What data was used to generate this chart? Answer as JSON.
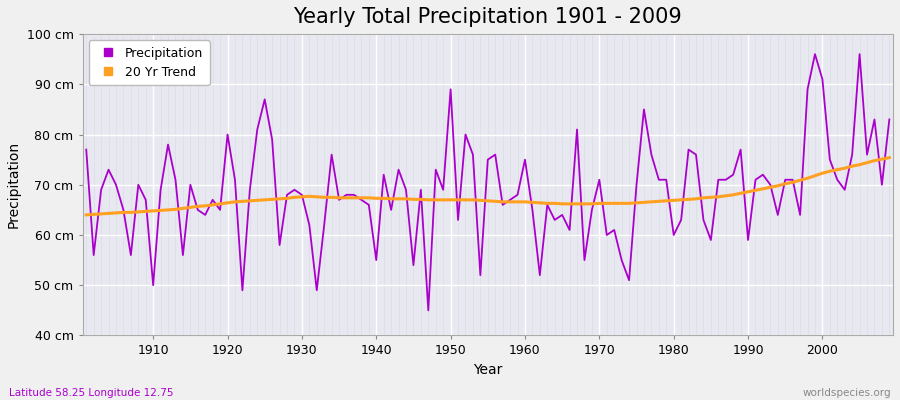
{
  "title": "Yearly Total Precipitation 1901 - 2009",
  "xlabel": "Year",
  "ylabel": "Precipitation",
  "subtitle_left": "Latitude 58.25 Longitude 12.75",
  "subtitle_right": "worldspecies.org",
  "ylim": [
    40,
    100
  ],
  "ytick_labels": [
    "40 cm",
    "50 cm",
    "60 cm",
    "70 cm",
    "80 cm",
    "90 cm",
    "100 cm"
  ],
  "ytick_values": [
    40,
    50,
    60,
    70,
    80,
    90,
    100
  ],
  "years": [
    1901,
    1902,
    1903,
    1904,
    1905,
    1906,
    1907,
    1908,
    1909,
    1910,
    1911,
    1912,
    1913,
    1914,
    1915,
    1916,
    1917,
    1918,
    1919,
    1920,
    1921,
    1922,
    1923,
    1924,
    1925,
    1926,
    1927,
    1928,
    1929,
    1930,
    1931,
    1932,
    1933,
    1934,
    1935,
    1936,
    1937,
    1938,
    1939,
    1940,
    1941,
    1942,
    1943,
    1944,
    1945,
    1946,
    1947,
    1948,
    1949,
    1950,
    1951,
    1952,
    1953,
    1954,
    1955,
    1956,
    1957,
    1958,
    1959,
    1960,
    1961,
    1962,
    1963,
    1964,
    1965,
    1966,
    1967,
    1968,
    1969,
    1970,
    1971,
    1972,
    1973,
    1974,
    1975,
    1976,
    1977,
    1978,
    1979,
    1980,
    1981,
    1982,
    1983,
    1984,
    1985,
    1986,
    1987,
    1988,
    1989,
    1990,
    1991,
    1992,
    1993,
    1994,
    1995,
    1996,
    1997,
    1998,
    1999,
    2000,
    2001,
    2002,
    2003,
    2004,
    2005,
    2006,
    2007,
    2008,
    2009
  ],
  "precip": [
    77,
    56,
    69,
    73,
    70,
    65,
    56,
    70,
    67,
    50,
    69,
    78,
    71,
    56,
    70,
    65,
    64,
    67,
    65,
    80,
    71,
    49,
    69,
    81,
    87,
    79,
    58,
    68,
    69,
    68,
    62,
    49,
    62,
    76,
    67,
    68,
    68,
    67,
    66,
    55,
    72,
    65,
    73,
    69,
    54,
    69,
    45,
    73,
    69,
    89,
    63,
    80,
    76,
    52,
    75,
    76,
    66,
    67,
    68,
    75,
    65,
    52,
    66,
    63,
    64,
    61,
    81,
    55,
    65,
    71,
    60,
    61,
    55,
    51,
    70,
    85,
    76,
    71,
    71,
    60,
    63,
    77,
    76,
    63,
    59,
    71,
    71,
    72,
    77,
    59,
    71,
    72,
    70,
    64,
    71,
    71,
    64,
    89,
    96,
    91,
    75,
    71,
    69,
    76,
    96,
    76,
    83,
    70,
    83
  ],
  "trend": [
    64.0,
    64.1,
    64.2,
    64.3,
    64.4,
    64.5,
    64.5,
    64.6,
    64.7,
    64.8,
    64.9,
    65.0,
    65.1,
    65.3,
    65.5,
    65.7,
    65.8,
    66.0,
    66.2,
    66.4,
    66.6,
    66.7,
    66.8,
    66.9,
    67.0,
    67.1,
    67.2,
    67.3,
    67.5,
    67.6,
    67.7,
    67.6,
    67.5,
    67.5,
    67.4,
    67.4,
    67.4,
    67.4,
    67.4,
    67.3,
    67.3,
    67.2,
    67.2,
    67.2,
    67.1,
    67.1,
    67.0,
    67.0,
    67.0,
    67.0,
    67.0,
    67.0,
    67.0,
    66.9,
    66.8,
    66.7,
    66.6,
    66.6,
    66.6,
    66.6,
    66.5,
    66.4,
    66.3,
    66.3,
    66.2,
    66.2,
    66.2,
    66.2,
    66.2,
    66.3,
    66.3,
    66.3,
    66.3,
    66.3,
    66.4,
    66.5,
    66.6,
    66.7,
    66.8,
    66.9,
    67.0,
    67.1,
    67.2,
    67.4,
    67.5,
    67.6,
    67.8,
    68.0,
    68.3,
    68.6,
    68.9,
    69.2,
    69.5,
    69.8,
    70.2,
    70.5,
    70.9,
    71.3,
    71.8,
    72.3,
    72.7,
    73.0,
    73.3,
    73.7,
    74.0,
    74.4,
    74.8,
    75.1,
    75.4
  ],
  "precip_color": "#AA00CC",
  "trend_color": "#FFA020",
  "fig_bg_color": "#F0F0F0",
  "plot_bg_color": "#E8E8F0",
  "grid_color_major": "#FFFFFF",
  "grid_color_minor": "#DCDCE8",
  "title_fontsize": 15,
  "label_fontsize": 10,
  "tick_fontsize": 9,
  "legend_fontsize": 9,
  "subtitle_left_color": "#AA00CC",
  "subtitle_right_color": "#888888"
}
